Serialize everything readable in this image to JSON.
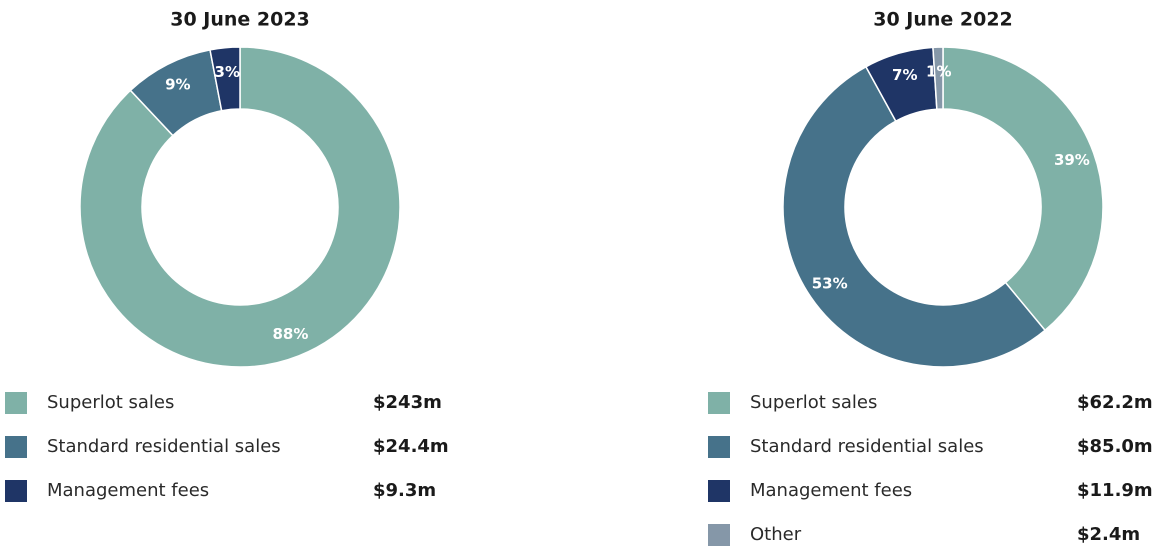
{
  "chart_data": [
    {
      "type": "pie",
      "title": "30 June 2023",
      "categories": [
        "Superlot sales",
        "Standard residential sales",
        "Management fees"
      ],
      "values": [
        88,
        9,
        3
      ],
      "value_labels": [
        "88%",
        "9%",
        "3%"
      ],
      "colors": [
        "#7fb1a7",
        "#46728a",
        "#1f3566"
      ],
      "amount_labels": [
        "$243m",
        "$24.4m",
        "$9.3m"
      ]
    },
    {
      "type": "pie",
      "title": "30 June 2022",
      "categories": [
        "Superlot sales",
        "Standard residential sales",
        "Management fees",
        "Other"
      ],
      "values": [
        39,
        53,
        7,
        1
      ],
      "value_labels": [
        "39%",
        "53%",
        "7%",
        "1%"
      ],
      "colors": [
        "#7fb1a7",
        "#46728a",
        "#1f3566",
        "#8597a8"
      ],
      "amount_labels": [
        "$62.2m",
        "$85.0m",
        "$11.9m",
        "$2.4m"
      ]
    }
  ]
}
